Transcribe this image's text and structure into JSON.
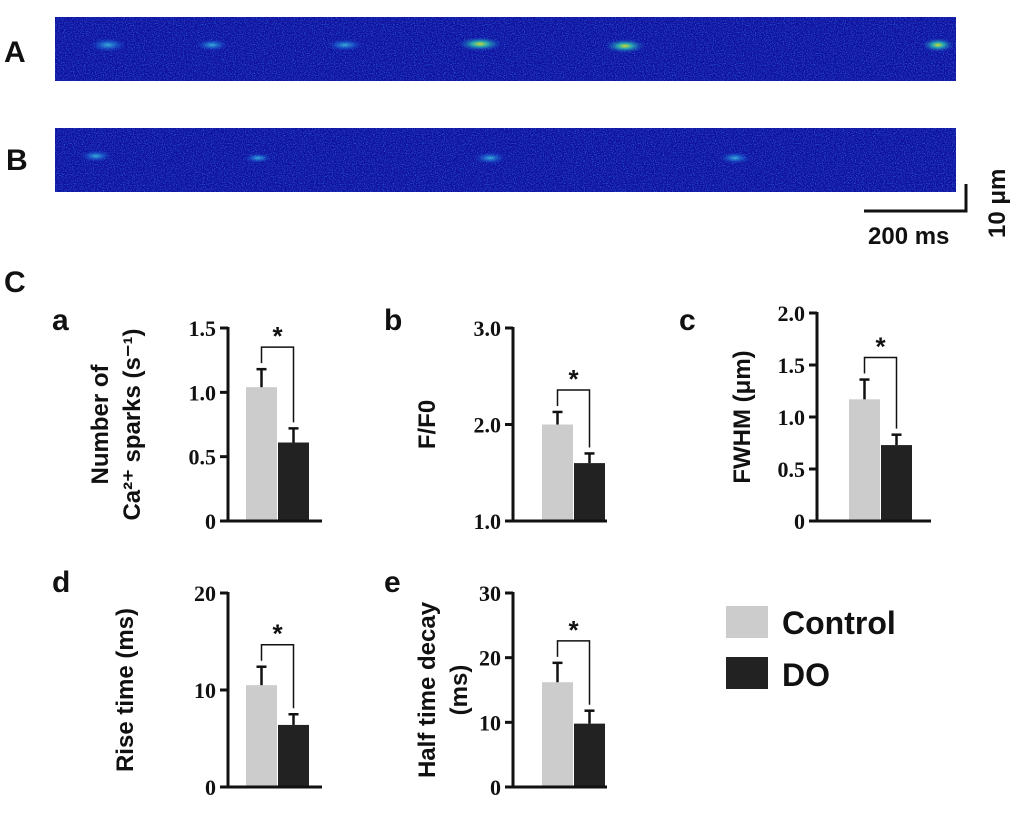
{
  "figure": {
    "linescan_labels": [
      "A",
      "B"
    ],
    "section_label": "C",
    "scalebar": {
      "time_label": "200 ms",
      "space_label": "10 μm"
    },
    "linescan_colors": {
      "background": "#1010a0",
      "spark_mid": "#1fb8d8",
      "spark_peak": "#e8e020"
    },
    "legend": [
      {
        "label": "Control",
        "color": "#cccccc"
      },
      {
        "label": "DO",
        "color": "#222222"
      }
    ]
  },
  "chart_data": [
    {
      "type": "bar",
      "panel": "a",
      "categories": [
        "Control",
        "DO"
      ],
      "values": [
        1.04,
        0.61
      ],
      "errors": [
        0.14,
        0.11
      ],
      "ylabel_lines": [
        "Number of",
        "Ca²⁺ sparks (s⁻¹)"
      ],
      "ylim": [
        0,
        1.5
      ],
      "yticks": [
        0,
        0.5,
        1.0,
        1.5
      ],
      "ytick_labels": [
        "0",
        "0.5",
        "1.0",
        "1.5"
      ],
      "significance": "*"
    },
    {
      "type": "bar",
      "panel": "b",
      "categories": [
        "Control",
        "DO"
      ],
      "values": [
        2.0,
        1.6
      ],
      "errors": [
        0.13,
        0.1
      ],
      "ylabel_lines": [
        "F/F0"
      ],
      "ylim": [
        1.0,
        3.0
      ],
      "yticks": [
        1.0,
        2.0,
        3.0
      ],
      "ytick_labels": [
        "1.0",
        "2.0",
        "3.0"
      ],
      "significance": "*"
    },
    {
      "type": "bar",
      "panel": "c",
      "categories": [
        "Control",
        "DO"
      ],
      "values": [
        1.17,
        0.73
      ],
      "errors": [
        0.19,
        0.1
      ],
      "ylabel_lines": [
        "FWHM (μm)"
      ],
      "ylim": [
        0,
        2.0
      ],
      "yticks": [
        0,
        0.5,
        1.0,
        1.5,
        2.0
      ],
      "ytick_labels": [
        "0",
        "0.5",
        "1.0",
        "1.5",
        "2.0"
      ],
      "significance": "*"
    },
    {
      "type": "bar",
      "panel": "d",
      "categories": [
        "Control",
        "DO"
      ],
      "values": [
        10.5,
        6.4
      ],
      "errors": [
        1.9,
        1.1
      ],
      "ylabel_lines": [
        "Rise time (ms)"
      ],
      "ylim": [
        0,
        20
      ],
      "yticks": [
        0,
        10,
        20
      ],
      "ytick_labels": [
        "0",
        "10",
        "20"
      ],
      "significance": "*"
    },
    {
      "type": "bar",
      "panel": "e",
      "categories": [
        "Control",
        "DO"
      ],
      "values": [
        16.2,
        9.8
      ],
      "errors": [
        3.0,
        2.0
      ],
      "ylabel_lines": [
        "Half time decay",
        "(ms)"
      ],
      "ylim": [
        0,
        30
      ],
      "yticks": [
        0,
        10,
        20,
        30
      ],
      "ytick_labels": [
        "0",
        "10",
        "20",
        "30"
      ],
      "significance": "*"
    }
  ]
}
